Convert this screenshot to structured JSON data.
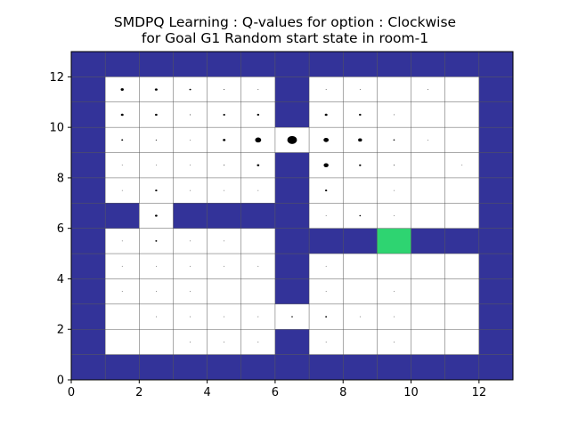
{
  "chart_data": {
    "type": "heatmap",
    "title": "SMDPQ Learning : Q-values for option : Clockwise",
    "subtitle": "for Goal G1 Random start state in room-1",
    "xlabel": "",
    "ylabel": "",
    "xlim": [
      0,
      13
    ],
    "ylim": [
      0,
      13
    ],
    "x_ticks": [
      "0",
      "2",
      "4",
      "6",
      "8",
      "10",
      "12"
    ],
    "y_ticks": [
      "0",
      "2",
      "4",
      "6",
      "8",
      "10",
      "12"
    ],
    "grid": true,
    "colors": {
      "wall": "#333399",
      "free": "#ffffff",
      "goal": "#2ed471",
      "grid": "#555555",
      "marker": "#000000"
    },
    "grid_rows_top_to_bottom": [
      "WWWWWWWWWWWWW",
      "W.....W.....W",
      "W.....W.....W",
      "W...........W",
      "W.....W.....W",
      "W.....W.....W",
      "WW.WWWW.....W",
      "W.....WWWGWWW",
      "W.....W.....W",
      "W.....W.....W",
      "W...........W",
      "W.....W.....W",
      "WWWWWWWWWWWWW"
    ],
    "q_value_markers": [
      {
        "x": 1.5,
        "y": 11.5,
        "v": 0.5
      },
      {
        "x": 2.5,
        "y": 11.5,
        "v": 0.45
      },
      {
        "x": 3.5,
        "y": 11.5,
        "v": 0.3
      },
      {
        "x": 4.5,
        "y": 11.5,
        "v": 0.15
      },
      {
        "x": 5.5,
        "y": 11.5,
        "v": 0.1
      },
      {
        "x": 7.5,
        "y": 11.5,
        "v": 0.08
      },
      {
        "x": 8.5,
        "y": 11.5,
        "v": 0.08
      },
      {
        "x": 10.5,
        "y": 11.5,
        "v": 0.08
      },
      {
        "x": 1.5,
        "y": 10.5,
        "v": 0.45
      },
      {
        "x": 2.5,
        "y": 10.5,
        "v": 0.4
      },
      {
        "x": 3.5,
        "y": 10.5,
        "v": 0.15
      },
      {
        "x": 4.5,
        "y": 10.5,
        "v": 0.35
      },
      {
        "x": 5.5,
        "y": 10.5,
        "v": 0.38
      },
      {
        "x": 7.5,
        "y": 10.5,
        "v": 0.45
      },
      {
        "x": 8.5,
        "y": 10.5,
        "v": 0.38
      },
      {
        "x": 9.5,
        "y": 10.5,
        "v": 0.12
      },
      {
        "x": 1.5,
        "y": 9.5,
        "v": 0.3
      },
      {
        "x": 2.5,
        "y": 9.5,
        "v": 0.18
      },
      {
        "x": 3.5,
        "y": 9.5,
        "v": 0.1
      },
      {
        "x": 4.5,
        "y": 9.5,
        "v": 0.45
      },
      {
        "x": 5.5,
        "y": 9.5,
        "v": 1.0
      },
      {
        "x": 6.5,
        "y": 9.5,
        "v": 1.6
      },
      {
        "x": 7.5,
        "y": 9.5,
        "v": 0.85
      },
      {
        "x": 8.5,
        "y": 9.5,
        "v": 0.65
      },
      {
        "x": 9.5,
        "y": 9.5,
        "v": 0.25
      },
      {
        "x": 10.5,
        "y": 9.5,
        "v": 0.08
      },
      {
        "x": 1.5,
        "y": 8.5,
        "v": 0.12
      },
      {
        "x": 2.5,
        "y": 8.5,
        "v": 0.12
      },
      {
        "x": 3.5,
        "y": 8.5,
        "v": 0.08
      },
      {
        "x": 4.5,
        "y": 8.5,
        "v": 0.15
      },
      {
        "x": 5.5,
        "y": 8.5,
        "v": 0.4
      },
      {
        "x": 7.5,
        "y": 8.5,
        "v": 0.8
      },
      {
        "x": 8.5,
        "y": 8.5,
        "v": 0.35
      },
      {
        "x": 9.5,
        "y": 8.5,
        "v": 0.15
      },
      {
        "x": 11.5,
        "y": 8.5,
        "v": 0.08
      },
      {
        "x": 1.5,
        "y": 7.5,
        "v": 0.08
      },
      {
        "x": 2.5,
        "y": 7.5,
        "v": 0.35
      },
      {
        "x": 3.5,
        "y": 7.5,
        "v": 0.08
      },
      {
        "x": 4.5,
        "y": 7.5,
        "v": 0.08
      },
      {
        "x": 5.5,
        "y": 7.5,
        "v": 0.08
      },
      {
        "x": 7.5,
        "y": 7.5,
        "v": 0.35
      },
      {
        "x": 9.5,
        "y": 7.5,
        "v": 0.1
      },
      {
        "x": 2.5,
        "y": 6.5,
        "v": 0.4
      },
      {
        "x": 7.5,
        "y": 6.5,
        "v": 0.1
      },
      {
        "x": 8.5,
        "y": 6.5,
        "v": 0.25
      },
      {
        "x": 9.5,
        "y": 6.5,
        "v": 0.1
      },
      {
        "x": 1.5,
        "y": 5.5,
        "v": 0.1
      },
      {
        "x": 2.5,
        "y": 5.5,
        "v": 0.3
      },
      {
        "x": 3.5,
        "y": 5.5,
        "v": 0.08
      },
      {
        "x": 4.5,
        "y": 5.5,
        "v": 0.08
      },
      {
        "x": 1.5,
        "y": 4.5,
        "v": 0.06
      },
      {
        "x": 2.5,
        "y": 4.5,
        "v": 0.06
      },
      {
        "x": 3.5,
        "y": 4.5,
        "v": 0.06
      },
      {
        "x": 4.5,
        "y": 4.5,
        "v": 0.06
      },
      {
        "x": 5.5,
        "y": 4.5,
        "v": 0.06
      },
      {
        "x": 7.5,
        "y": 4.5,
        "v": 0.08
      },
      {
        "x": 1.5,
        "y": 3.5,
        "v": 0.05
      },
      {
        "x": 2.5,
        "y": 3.5,
        "v": 0.05
      },
      {
        "x": 3.5,
        "y": 3.5,
        "v": 0.05
      },
      {
        "x": 7.5,
        "y": 3.5,
        "v": 0.12
      },
      {
        "x": 9.5,
        "y": 3.5,
        "v": 0.06
      },
      {
        "x": 2.5,
        "y": 2.5,
        "v": 0.06
      },
      {
        "x": 3.5,
        "y": 2.5,
        "v": 0.06
      },
      {
        "x": 4.5,
        "y": 2.5,
        "v": 0.06
      },
      {
        "x": 5.5,
        "y": 2.5,
        "v": 0.12
      },
      {
        "x": 6.5,
        "y": 2.5,
        "v": 0.25
      },
      {
        "x": 7.5,
        "y": 2.5,
        "v": 0.3
      },
      {
        "x": 8.5,
        "y": 2.5,
        "v": 0.08
      },
      {
        "x": 9.5,
        "y": 2.5,
        "v": 0.06
      },
      {
        "x": 3.5,
        "y": 1.5,
        "v": 0.05
      },
      {
        "x": 4.5,
        "y": 1.5,
        "v": 0.05
      },
      {
        "x": 5.5,
        "y": 1.5,
        "v": 0.05
      },
      {
        "x": 7.5,
        "y": 1.5,
        "v": 0.08
      },
      {
        "x": 9.5,
        "y": 1.5,
        "v": 0.05
      }
    ]
  }
}
